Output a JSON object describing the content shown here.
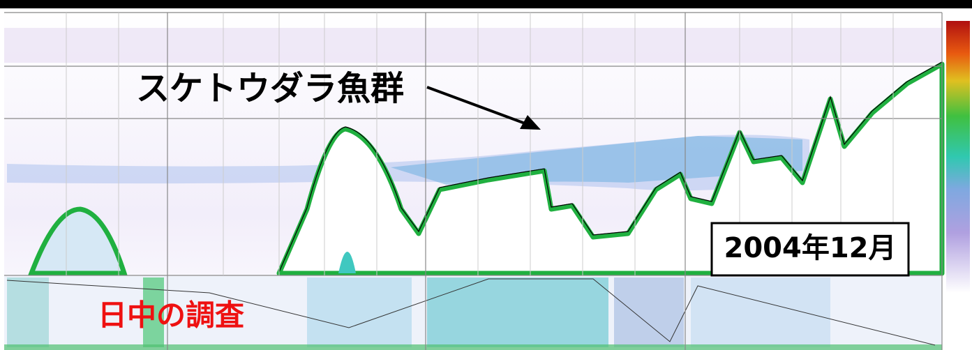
{
  "annotations": {
    "fish_school": "スケトウダラ魚群",
    "date": "2004年12月",
    "survey": "日中の調査"
  }
}
